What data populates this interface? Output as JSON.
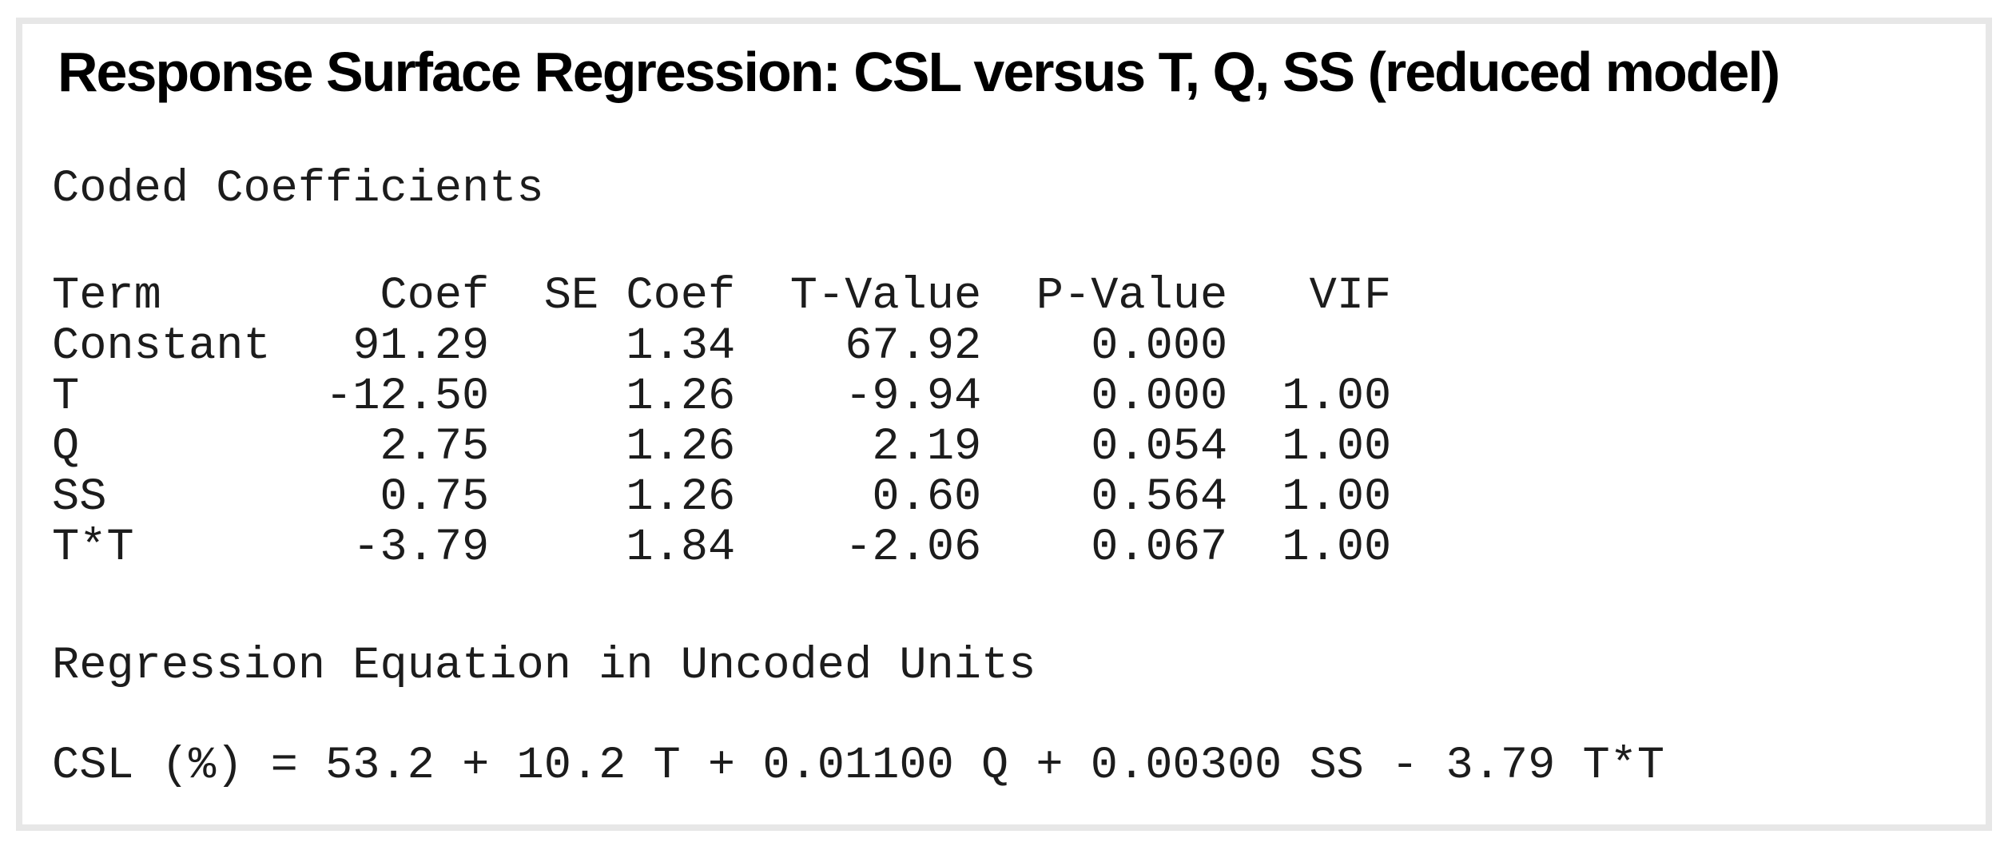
{
  "report": {
    "title": "Response Surface Regression: CSL versus T, Q, SS (reduced model)"
  },
  "coded": {
    "heading": "Coded Coefficients",
    "columns": [
      "Term",
      "Coef",
      "SE Coef",
      "T-Value",
      "P-Value",
      "VIF"
    ],
    "rows": [
      [
        "Constant",
        "91.29",
        "1.34",
        "67.92",
        "0.000",
        ""
      ],
      [
        "T",
        "-12.50",
        "1.26",
        "-9.94",
        "0.000",
        "1.00"
      ],
      [
        "Q",
        "2.75",
        "1.26",
        "2.19",
        "0.054",
        "1.00"
      ],
      [
        "SS",
        "0.75",
        "1.26",
        "0.60",
        "0.564",
        "1.00"
      ],
      [
        "T*T",
        "-3.79",
        "1.84",
        "-2.06",
        "0.067",
        "1.00"
      ]
    ]
  },
  "uncoded": {
    "heading": "Regression Equation in Uncoded Units",
    "equation": "CSL (%) = 53.2 + 10.2 T + 0.01100 Q + 0.00300 SS - 3.79 T*T"
  },
  "colors": {
    "panel_border": "#e7e7e7",
    "background": "#ffffff",
    "title_text": "#000000",
    "body_text": "#1c1c1c"
  }
}
